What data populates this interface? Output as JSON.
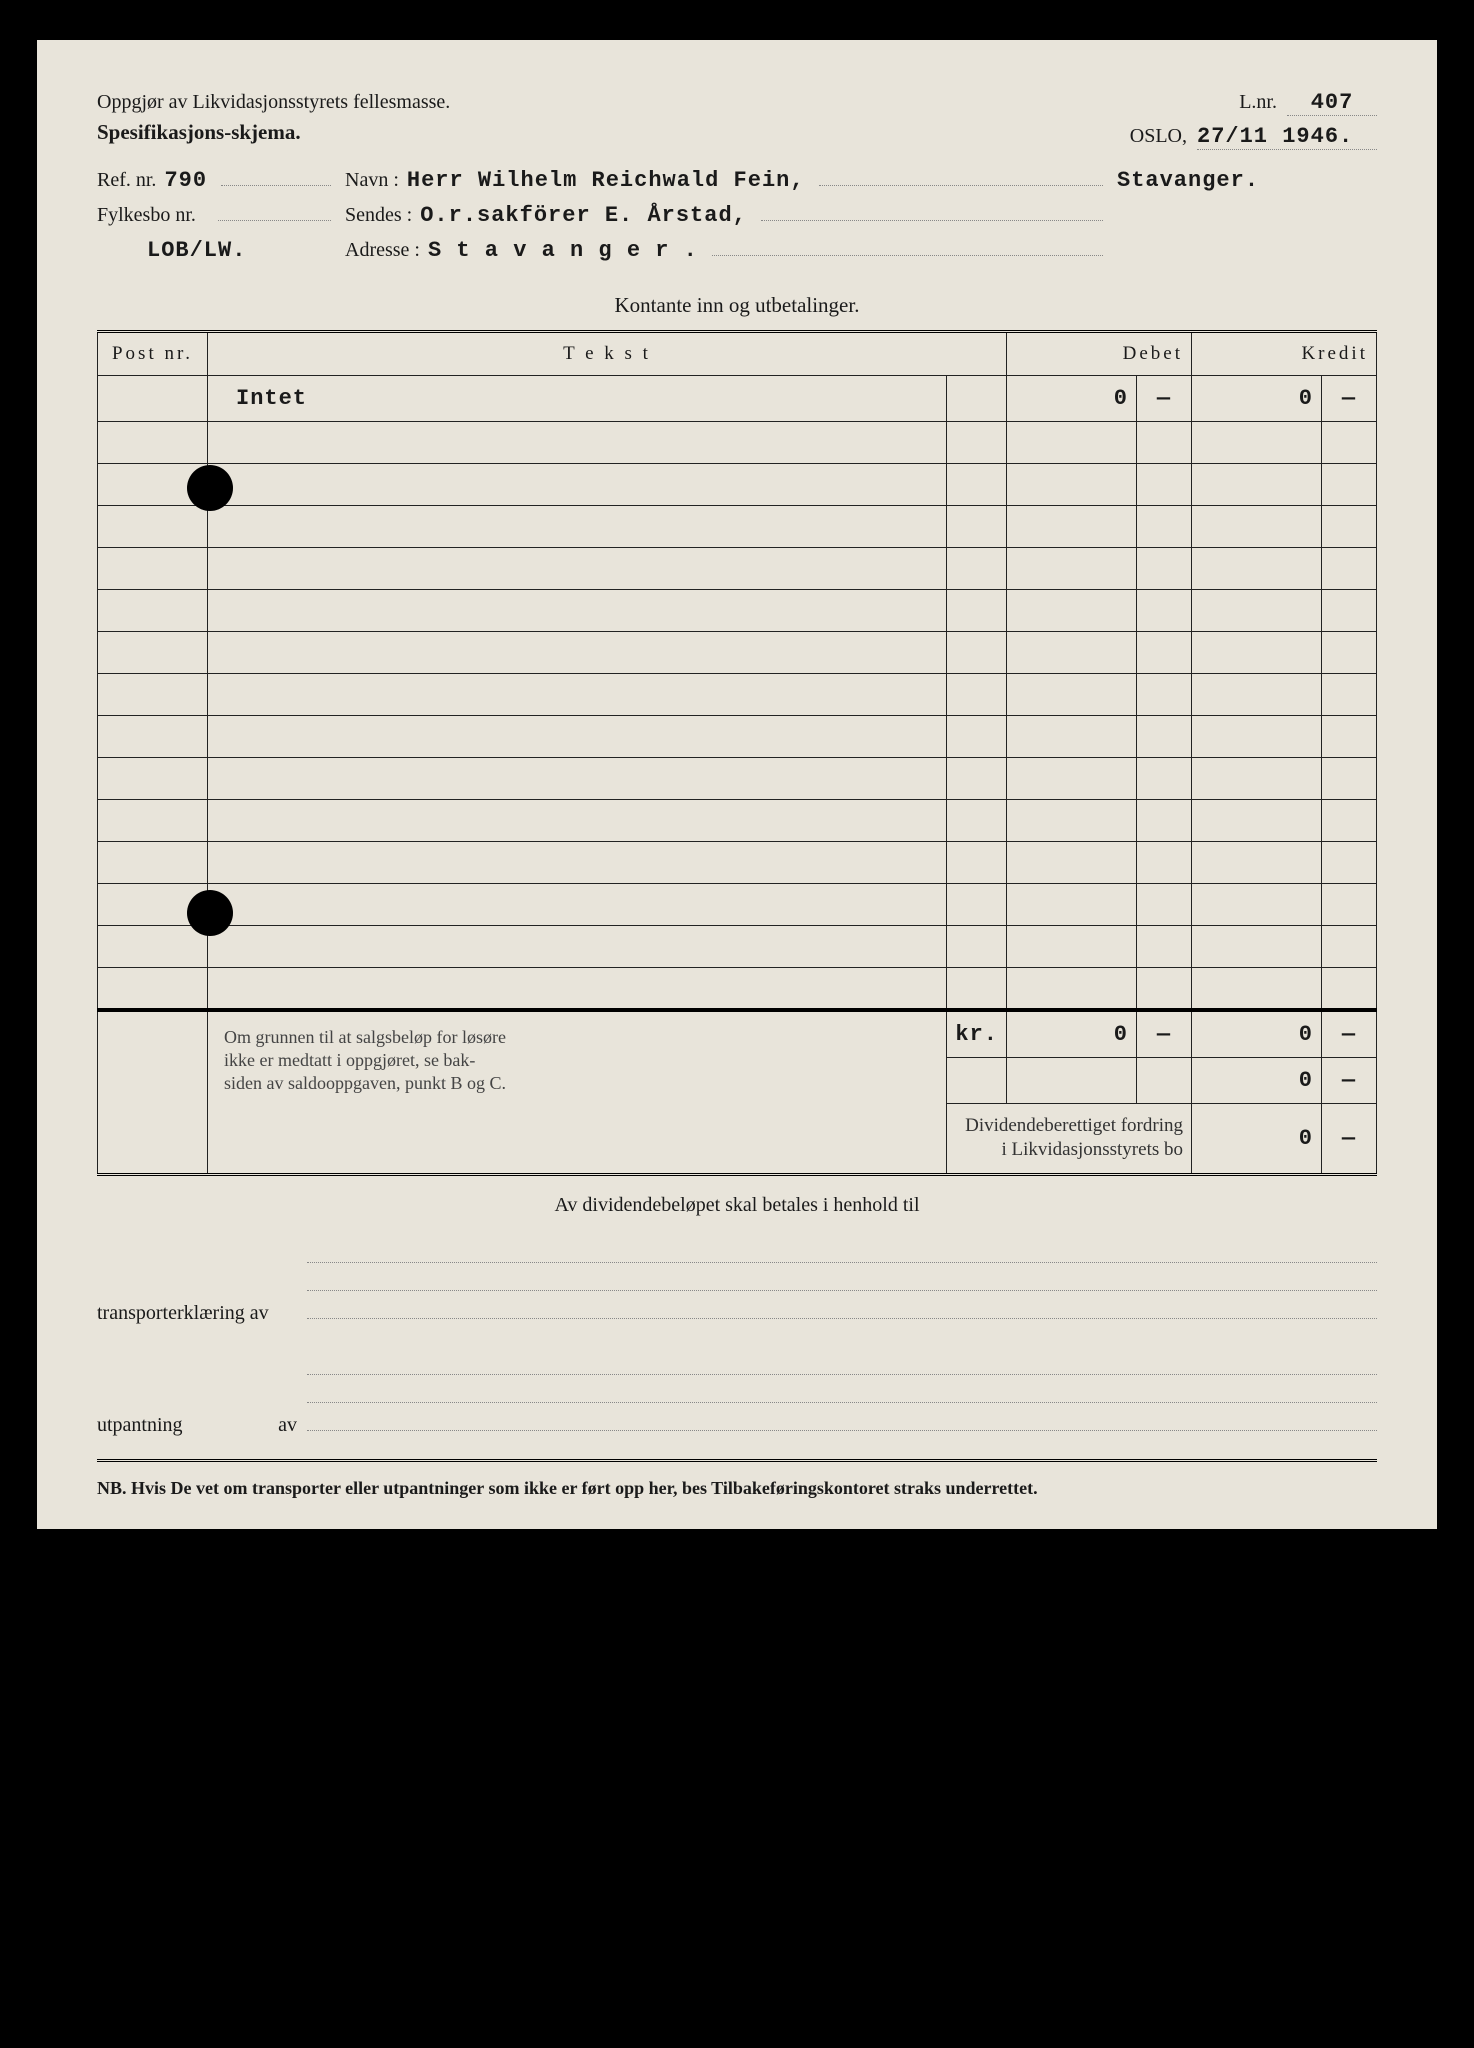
{
  "header": {
    "title1": "Oppgjør av Likvidasjonsstyrets fellesmasse.",
    "title2": "Spesifikasjons-skjema.",
    "lnr_label": "L.nr.",
    "lnr_value": "407",
    "oslo_label": "OSLO,",
    "oslo_date": "27/11 1946."
  },
  "fields": {
    "ref_label": "Ref. nr.",
    "ref_value": "790",
    "navn_label": "Navn :",
    "navn_value": "Herr Wilhelm Reichwald Fein,",
    "navn_place": "Stavanger.",
    "fylkes_label": "Fylkesbo nr.",
    "fylkes_value": "",
    "sendes_label": "Sendes :",
    "sendes_value": "O.r.sakförer E. Årstad,",
    "code": "LOB/LW.",
    "adresse_label": "Adresse :",
    "adresse_value": "S t a v a n g e r ."
  },
  "section_title": "Kontante inn og utbetalinger.",
  "table": {
    "headers": {
      "post": "Post nr.",
      "text": "T e k s t",
      "debet": "Debet",
      "kredit": "Kredit"
    },
    "first_row": {
      "text": "Intet",
      "debet_int": "0",
      "debet_dec": "—",
      "kredit_int": "0",
      "kredit_dec": "—"
    },
    "blank_rows": 14,
    "totals": {
      "kr_label": "kr.",
      "r1": {
        "d_int": "0",
        "d_dec": "—",
        "k_int": "0",
        "k_dec": "—"
      },
      "r2": {
        "k_int": "0",
        "k_dec": "—"
      },
      "r3_label": "Dividendeberettiget fordring i Likvidasjonsstyrets bo",
      "r3": {
        "k_int": "0",
        "k_dec": "—"
      }
    },
    "stamp_lines": [
      "Om grunnen til at salgsbeløp for løsøre",
      "ikke er medtatt i oppgjøret, se bak-",
      "siden av saldooppgaven, punkt B og C."
    ]
  },
  "bottom": {
    "title": "Av dividendebeløpet skal betales i henhold til",
    "transport_label": "transporterklæring av",
    "utpant_label": "utpantning",
    "av_label": "av"
  },
  "nb": "NB. Hvis De vet om transporter eller utpantninger som ikke er ført opp her, bes Tilbakeføringskontoret straks underrettet.",
  "colors": {
    "page_bg": "#e8e4da",
    "outer_bg": "#000000",
    "text": "#1a1a1a",
    "dotted": "#888888"
  }
}
